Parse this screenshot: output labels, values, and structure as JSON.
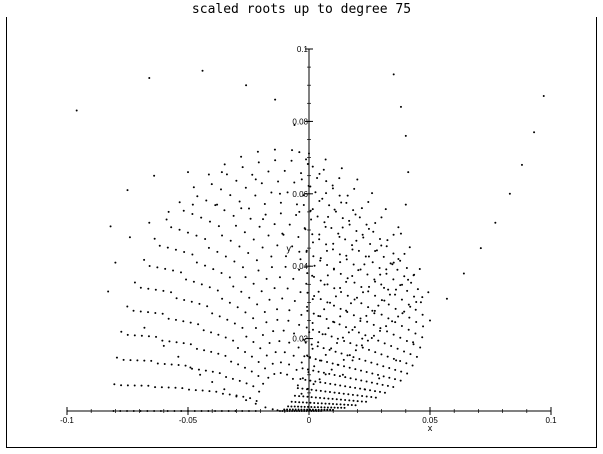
{
  "chart_data": {
    "type": "scatter",
    "title": "scaled roots up to degree 75",
    "xlabel": "x",
    "ylabel": "y",
    "xlim": [
      -0.1,
      0.1
    ],
    "ylim": [
      0,
      0.1
    ],
    "grid": false,
    "axes_style": "crossing at origin",
    "x_ticks": [
      {
        "value": -0.1,
        "label": "-0.1"
      },
      {
        "value": -0.05,
        "label": "-0.05"
      },
      {
        "value": 0,
        "label": "0"
      },
      {
        "value": 0.05,
        "label": "0.05"
      },
      {
        "value": 0.1,
        "label": "0.1"
      }
    ],
    "y_ticks": [
      {
        "value": 0.02,
        "label": "0.02"
      },
      {
        "value": 0.04,
        "label": "0.04"
      },
      {
        "value": 0.06,
        "label": "0.06"
      },
      {
        "value": 0.08,
        "label": "0.08"
      },
      {
        "value": 0.1,
        "label": "0.1"
      }
    ],
    "point_color": "#000000",
    "series": [
      {
        "points": [
          [
            -0.096,
            0.083
          ],
          [
            -0.066,
            0.092
          ],
          [
            -0.044,
            0.094
          ],
          [
            -0.026,
            0.09
          ],
          [
            -0.014,
            0.086
          ],
          [
            -0.006,
            0.079
          ]
        ]
      },
      {
        "points": [
          [
            -0.082,
            0.051
          ],
          [
            -0.075,
            0.061
          ],
          [
            -0.064,
            0.065
          ],
          [
            -0.05,
            0.066
          ],
          [
            -0.036,
            0.066
          ],
          [
            -0.022,
            0.064
          ],
          [
            -0.012,
            0.06
          ],
          [
            -0.004,
            0.055
          ]
        ]
      },
      {
        "points": [
          [
            -0.08,
            0.041
          ],
          [
            -0.074,
            0.048
          ],
          [
            -0.066,
            0.052
          ],
          [
            -0.058,
            0.055
          ],
          [
            -0.048,
            0.057
          ],
          [
            -0.038,
            0.057
          ],
          [
            -0.028,
            0.056
          ],
          [
            -0.019,
            0.053
          ],
          [
            -0.011,
            0.049
          ],
          [
            -0.004,
            0.044
          ]
        ]
      },
      {
        "points": [
          [
            -0.083,
            0.033
          ],
          [
            -0.068,
            0.023
          ],
          [
            -0.06,
            0.018
          ],
          [
            -0.054,
            0.015
          ],
          [
            -0.049,
            0.012
          ],
          [
            -0.045,
            0.01
          ],
          [
            -0.04,
            0.008
          ],
          [
            -0.035,
            0.006
          ],
          [
            -0.03,
            0.004
          ],
          [
            -0.026,
            0.003
          ],
          [
            -0.022,
            0.002
          ],
          [
            -0.018,
            0.001
          ],
          [
            -0.015,
            0.0005
          ],
          [
            -0.013,
            0.0002
          ]
        ]
      },
      {
        "points": [
          [
            0.035,
            0.093
          ],
          [
            0.038,
            0.084
          ],
          [
            0.04,
            0.076
          ],
          [
            0.041,
            0.066
          ],
          [
            0.04,
            0.057
          ],
          [
            0.038,
            0.049
          ],
          [
            0.035,
            0.041
          ],
          [
            0.031,
            0.034
          ],
          [
            0.027,
            0.027
          ],
          [
            0.022,
            0.02
          ],
          [
            0.018,
            0.014
          ],
          [
            0.014,
            0.01
          ]
        ]
      },
      {
        "points": [
          [
            0.097,
            0.087
          ],
          [
            0.093,
            0.077
          ],
          [
            0.088,
            0.068
          ],
          [
            0.083,
            0.06
          ],
          [
            0.077,
            0.052
          ],
          [
            0.071,
            0.045
          ],
          [
            0.064,
            0.038
          ],
          [
            0.057,
            0.031
          ],
          [
            0.05,
            0.025
          ],
          [
            0.043,
            0.019
          ],
          [
            0.036,
            0.014
          ],
          [
            0.029,
            0.009
          ],
          [
            0.023,
            0.006
          ]
        ]
      }
    ],
    "family": {
      "description_values": {
        "center": [
          -0.012,
          0.0
        ],
        "lower_arcs": 22,
        "right_arcs": 18
      }
    }
  }
}
